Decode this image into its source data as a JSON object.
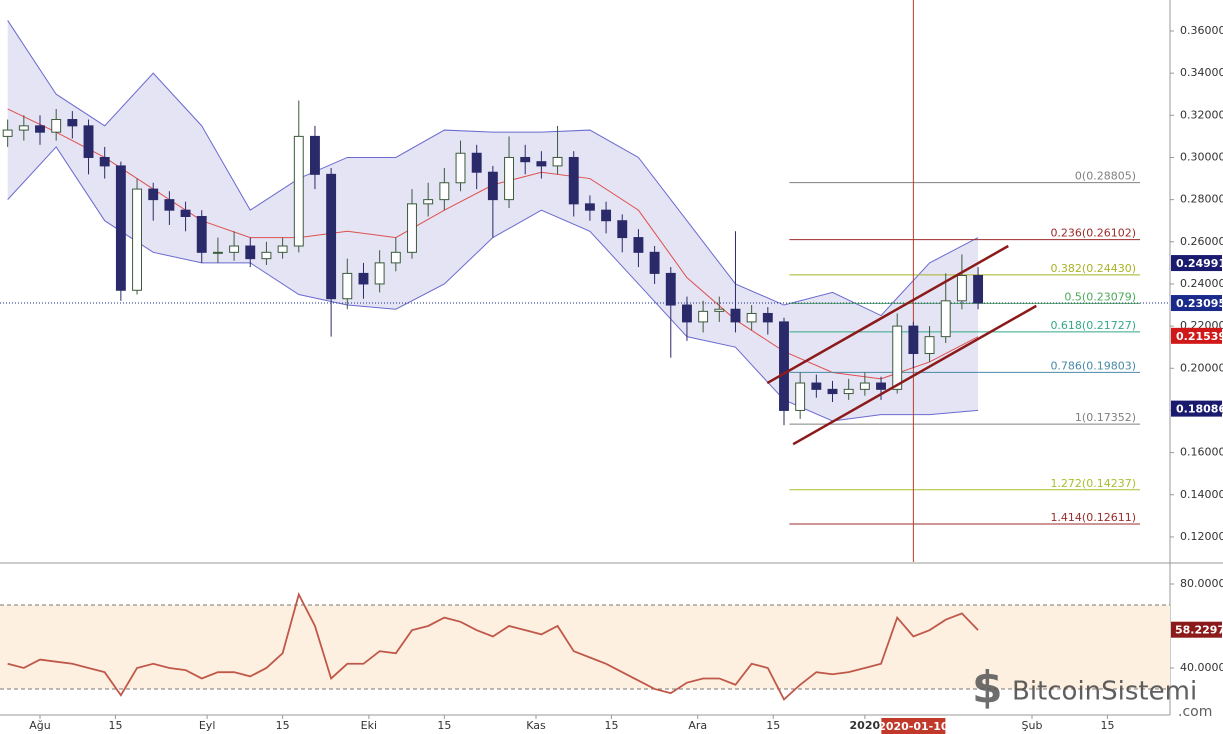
{
  "chart_data": {
    "type": "candlestick",
    "xlim": [
      -7.42,
      209.6
    ],
    "ylim": [
      0.1081,
      0.3747
    ],
    "x": [
      -6,
      -3,
      0,
      3,
      6,
      9,
      12,
      15,
      18,
      21,
      24,
      27,
      30,
      33,
      36,
      39,
      42,
      45,
      48,
      51,
      54,
      57,
      60,
      63,
      66,
      69,
      72,
      75,
      78,
      81,
      84,
      87,
      90,
      93,
      96,
      99,
      102,
      105,
      108,
      111,
      114,
      117,
      120,
      123,
      126,
      129,
      132,
      135,
      138,
      141,
      144,
      147,
      150,
      153,
      156,
      159,
      162,
      165,
      168,
      171,
      174
    ],
    "open": [
      0.31,
      0.313,
      0.315,
      0.312,
      0.318,
      0.315,
      0.3,
      0.296,
      0.237,
      0.285,
      0.28,
      0.275,
      0.272,
      0.255,
      0.255,
      0.258,
      0.252,
      0.255,
      0.258,
      0.31,
      0.292,
      0.233,
      0.245,
      0.24,
      0.25,
      0.255,
      0.278,
      0.28,
      0.288,
      0.302,
      0.293,
      0.28,
      0.3,
      0.298,
      0.296,
      0.3,
      0.278,
      0.275,
      0.27,
      0.262,
      0.255,
      0.245,
      0.23,
      0.222,
      0.227,
      0.228,
      0.222,
      0.226,
      0.222,
      0.18,
      0.193,
      0.19,
      0.188,
      0.19,
      0.193,
      0.19,
      0.22,
      0.207,
      0.215,
      0.232,
      0.244
    ],
    "high": [
      0.318,
      0.32,
      0.32,
      0.323,
      0.322,
      0.318,
      0.305,
      0.298,
      0.29,
      0.288,
      0.284,
      0.279,
      0.275,
      0.262,
      0.265,
      0.262,
      0.26,
      0.262,
      0.327,
      0.315,
      0.295,
      0.252,
      0.25,
      0.256,
      0.262,
      0.285,
      0.288,
      0.295,
      0.308,
      0.306,
      0.296,
      0.31,
      0.306,
      0.303,
      0.315,
      0.303,
      0.282,
      0.279,
      0.273,
      0.266,
      0.258,
      0.248,
      0.234,
      0.232,
      0.234,
      0.265,
      0.23,
      0.229,
      0.224,
      0.198,
      0.197,
      0.194,
      0.195,
      0.198,
      0.196,
      0.226,
      0.222,
      0.22,
      0.245,
      0.254,
      0.248
    ],
    "low": [
      0.305,
      0.308,
      0.306,
      0.308,
      0.309,
      0.292,
      0.29,
      0.232,
      0.235,
      0.27,
      0.268,
      0.265,
      0.25,
      0.25,
      0.251,
      0.248,
      0.249,
      0.252,
      0.255,
      0.285,
      0.215,
      0.228,
      0.233,
      0.236,
      0.246,
      0.252,
      0.272,
      0.275,
      0.284,
      0.285,
      0.262,
      0.276,
      0.292,
      0.29,
      0.292,
      0.272,
      0.27,
      0.264,
      0.255,
      0.248,
      0.24,
      0.205,
      0.213,
      0.217,
      0.222,
      0.217,
      0.218,
      0.216,
      0.173,
      0.176,
      0.186,
      0.184,
      0.185,
      0.187,
      0.185,
      0.188,
      0.2,
      0.203,
      0.212,
      0.228,
      0.228
    ],
    "close": [
      0.313,
      0.315,
      0.312,
      0.318,
      0.315,
      0.3,
      0.296,
      0.237,
      0.285,
      0.28,
      0.275,
      0.272,
      0.255,
      0.255,
      0.258,
      0.252,
      0.255,
      0.258,
      0.31,
      0.292,
      0.233,
      0.245,
      0.24,
      0.25,
      0.255,
      0.278,
      0.28,
      0.288,
      0.302,
      0.293,
      0.28,
      0.3,
      0.298,
      0.296,
      0.3,
      0.278,
      0.275,
      0.27,
      0.262,
      0.255,
      0.245,
      0.23,
      0.222,
      0.227,
      0.228,
      0.222,
      0.226,
      0.222,
      0.18,
      0.193,
      0.19,
      0.188,
      0.19,
      0.193,
      0.19,
      0.22,
      0.207,
      0.215,
      0.232,
      0.244,
      0.231
    ],
    "up_color": "#3c5a3c",
    "down_color": "#2a2a6a",
    "bands": {
      "x": [
        -6,
        3,
        12,
        21,
        30,
        39,
        48,
        57,
        66,
        75,
        84,
        93,
        102,
        111,
        120,
        129,
        138,
        147,
        156,
        165,
        174
      ],
      "upper": [
        0.365,
        0.33,
        0.315,
        0.34,
        0.315,
        0.275,
        0.29,
        0.3,
        0.3,
        0.313,
        0.312,
        0.312,
        0.313,
        0.3,
        0.27,
        0.24,
        0.23,
        0.236,
        0.225,
        0.25,
        0.262
      ],
      "middle": [
        0.323,
        0.312,
        0.3,
        0.285,
        0.27,
        0.262,
        0.262,
        0.265,
        0.262,
        0.275,
        0.287,
        0.293,
        0.29,
        0.275,
        0.243,
        0.223,
        0.208,
        0.198,
        0.195,
        0.203,
        0.215
      ],
      "lower": [
        0.28,
        0.305,
        0.27,
        0.255,
        0.25,
        0.25,
        0.235,
        0.23,
        0.228,
        0.24,
        0.262,
        0.275,
        0.265,
        0.24,
        0.215,
        0.21,
        0.185,
        0.175,
        0.178,
        0.178,
        0.18
      ],
      "band_color": "#6a6ad0",
      "fill": "#e4e4f4",
      "middle_color": "#e05050"
    },
    "yticks": [
      {
        "value": 0.12,
        "label": "0.12000"
      },
      {
        "value": 0.14,
        "label": "0.14000"
      },
      {
        "value": 0.16,
        "label": "0.16000"
      },
      {
        "value": 0.18,
        "label": "0.18000"
      },
      {
        "value": 0.2,
        "label": "0.20000"
      },
      {
        "value": 0.22,
        "label": "0.22000"
      },
      {
        "value": 0.24,
        "label": "0.24000"
      },
      {
        "value": 0.26,
        "label": "0.26000"
      },
      {
        "value": 0.28,
        "label": "0.28000"
      },
      {
        "value": 0.3,
        "label": "0.30000"
      },
      {
        "value": 0.32,
        "label": "0.32000"
      },
      {
        "value": 0.34,
        "label": "0.34000"
      },
      {
        "value": 0.36,
        "label": "0.36000"
      }
    ],
    "xticks": [
      {
        "value": 0,
        "label": "Ağu"
      },
      {
        "value": 14,
        "label": "15"
      },
      {
        "value": 31,
        "label": "Eyl"
      },
      {
        "value": 45,
        "label": "15"
      },
      {
        "value": 61,
        "label": "Eki"
      },
      {
        "value": 75,
        "label": "15"
      },
      {
        "value": 92,
        "label": "Kas"
      },
      {
        "value": 106,
        "label": "15"
      },
      {
        "value": 122,
        "label": "Ara"
      },
      {
        "value": 136,
        "label": "15"
      },
      {
        "value": 153,
        "label": "2020"
      },
      {
        "value": 184,
        "label": "Şub"
      },
      {
        "value": 198,
        "label": "15"
      }
    ],
    "fib": {
      "start": 139,
      "levels": [
        {
          "value": 0.28805,
          "label": "0(0.28805)",
          "color": "#808080"
        },
        {
          "value": 0.26102,
          "label": "0.236(0.26102)",
          "color": "#9b2b2b"
        },
        {
          "value": 0.2443,
          "label": "0.382(0.24430)",
          "color": "#a8b424"
        },
        {
          "value": 0.23079,
          "label": "0.5(0.23079)",
          "color": "#4caa5a"
        },
        {
          "value": 0.21727,
          "label": "0.618(0.21727)",
          "color": "#33a888"
        },
        {
          "value": 0.19803,
          "label": "0.786(0.19803)",
          "color": "#4a8aa6"
        },
        {
          "value": 0.17352,
          "label": "1(0.17352)",
          "color": "#808080"
        },
        {
          "value": 0.14237,
          "label": "1.272(0.14237)",
          "color": "#a8c030"
        },
        {
          "value": 0.12611,
          "label": "1.414(0.12611)",
          "color": "#9b2b2b"
        }
      ]
    },
    "channel": {
      "color": "#8b1a1a",
      "lines": [
        {
          "x": [
            134.9,
            179.6
          ],
          "y": [
            0.193,
            0.258
          ]
        },
        {
          "x": [
            139.7,
            184.8
          ],
          "y": [
            0.164,
            0.2296
          ]
        }
      ]
    },
    "price_tags": [
      {
        "value": 0.24991,
        "color": "#1a1a6e"
      },
      {
        "value": 0.23095,
        "color": "#1a2a8a"
      },
      {
        "value": 0.21539,
        "color": "#d01818"
      },
      {
        "value": 0.18086,
        "color": "#1a1a6e"
      }
    ],
    "current_line": 0.23095,
    "marker": {
      "x": 162,
      "label": "2020-01-10",
      "color": "#c0392b"
    },
    "rsi": {
      "values": [
        42,
        40,
        44,
        43,
        42,
        40,
        38,
        27,
        40,
        42,
        40,
        39,
        35,
        38,
        38,
        36,
        40,
        47,
        75,
        60,
        35,
        42,
        42,
        48,
        47,
        58,
        60,
        64,
        62,
        58,
        55,
        60,
        58,
        56,
        60,
        48,
        45,
        42,
        38,
        34,
        30,
        28,
        33,
        35,
        35,
        32,
        42,
        40,
        25,
        32,
        38,
        37,
        38,
        40,
        42,
        64,
        55,
        58,
        63,
        66,
        58
      ],
      "ylim": [
        17.6,
        90
      ],
      "yticks": [
        {
          "value": 40,
          "label": "40.0000"
        },
        {
          "value": 80,
          "label": "80.0000"
        }
      ],
      "levels": [
        70,
        30
      ],
      "color": "#c0584a",
      "band_fill": "#fdf0e0",
      "current": 58.2297,
      "current_color": "#8b1a1a"
    },
    "watermark": {
      "name": "BitcoinSistemi",
      "suffix": ".com"
    }
  }
}
